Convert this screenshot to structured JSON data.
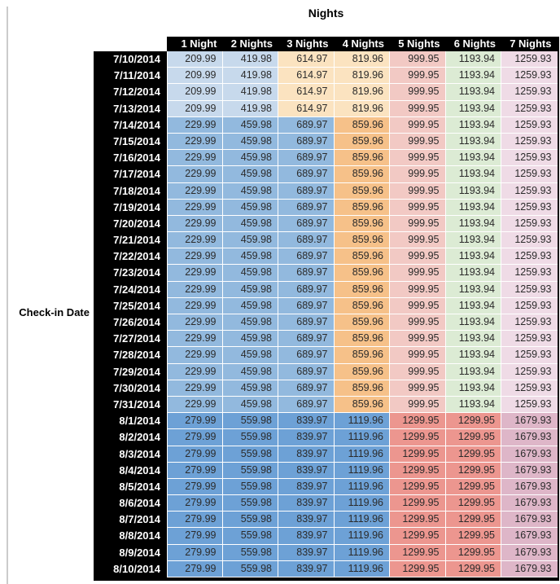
{
  "palette": {
    "lightblue": "#c7d9ec",
    "medblue": "#92b9de",
    "darkblue": "#6da1d6",
    "lightorange": "#fbe3c0",
    "medorange": "#f6c189",
    "lightred": "#f2c9c4",
    "lightgreen": "#dcebd4",
    "lightpink": "#efdbe6",
    "salmon": "#ec968f",
    "mauve": "#deb6c8",
    "header_bg": "#000000",
    "header_text": "#ffffff",
    "value_text": "#2b2b2b"
  },
  "chart_data": {
    "type": "table",
    "title": "Nights",
    "row_header_label": "Check-in Date",
    "columns": [
      "1 Night",
      "2 Nights",
      "3 Nights",
      "4 Nights",
      "5 Nights",
      "6 Nights",
      "7 Nights"
    ],
    "tiers": {
      "jul10_13": {
        "values": [
          209.99,
          419.98,
          614.97,
          819.96,
          999.95,
          1193.94,
          1259.93
        ],
        "colors": [
          "lightblue",
          "lightblue",
          "lightorange",
          "lightorange",
          "lightred",
          "lightgreen",
          "lightpink"
        ]
      },
      "jul14_31": {
        "values": [
          229.99,
          459.98,
          689.97,
          859.96,
          999.95,
          1193.94,
          1259.93
        ],
        "colors": [
          "medblue",
          "medblue",
          "medblue",
          "medorange",
          "lightred",
          "lightgreen",
          "lightpink"
        ]
      },
      "aug1_10": {
        "values": [
          279.99,
          559.98,
          839.97,
          1119.96,
          1299.95,
          1299.95,
          1679.93
        ],
        "colors": [
          "darkblue",
          "darkblue",
          "darkblue",
          "darkblue",
          "salmon",
          "salmon",
          "mauve"
        ]
      }
    },
    "rows": [
      {
        "date": "7/10/2014",
        "tier": "jul10_13"
      },
      {
        "date": "7/11/2014",
        "tier": "jul10_13"
      },
      {
        "date": "7/12/2014",
        "tier": "jul10_13"
      },
      {
        "date": "7/13/2014",
        "tier": "jul10_13"
      },
      {
        "date": "7/14/2014",
        "tier": "jul14_31"
      },
      {
        "date": "7/15/2014",
        "tier": "jul14_31"
      },
      {
        "date": "7/16/2014",
        "tier": "jul14_31"
      },
      {
        "date": "7/17/2014",
        "tier": "jul14_31"
      },
      {
        "date": "7/18/2014",
        "tier": "jul14_31"
      },
      {
        "date": "7/19/2014",
        "tier": "jul14_31"
      },
      {
        "date": "7/20/2014",
        "tier": "jul14_31"
      },
      {
        "date": "7/21/2014",
        "tier": "jul14_31"
      },
      {
        "date": "7/22/2014",
        "tier": "jul14_31"
      },
      {
        "date": "7/23/2014",
        "tier": "jul14_31"
      },
      {
        "date": "7/24/2014",
        "tier": "jul14_31"
      },
      {
        "date": "7/25/2014",
        "tier": "jul14_31"
      },
      {
        "date": "7/26/2014",
        "tier": "jul14_31"
      },
      {
        "date": "7/27/2014",
        "tier": "jul14_31"
      },
      {
        "date": "7/28/2014",
        "tier": "jul14_31"
      },
      {
        "date": "7/29/2014",
        "tier": "jul14_31"
      },
      {
        "date": "7/30/2014",
        "tier": "jul14_31"
      },
      {
        "date": "7/31/2014",
        "tier": "jul14_31"
      },
      {
        "date": "8/1/2014",
        "tier": "aug1_10"
      },
      {
        "date": "8/2/2014",
        "tier": "aug1_10"
      },
      {
        "date": "8/3/2014",
        "tier": "aug1_10"
      },
      {
        "date": "8/4/2014",
        "tier": "aug1_10"
      },
      {
        "date": "8/5/2014",
        "tier": "aug1_10"
      },
      {
        "date": "8/6/2014",
        "tier": "aug1_10"
      },
      {
        "date": "8/7/2014",
        "tier": "aug1_10"
      },
      {
        "date": "8/8/2014",
        "tier": "aug1_10"
      },
      {
        "date": "8/9/2014",
        "tier": "aug1_10"
      },
      {
        "date": "8/10/2014",
        "tier": "aug1_10"
      }
    ]
  }
}
